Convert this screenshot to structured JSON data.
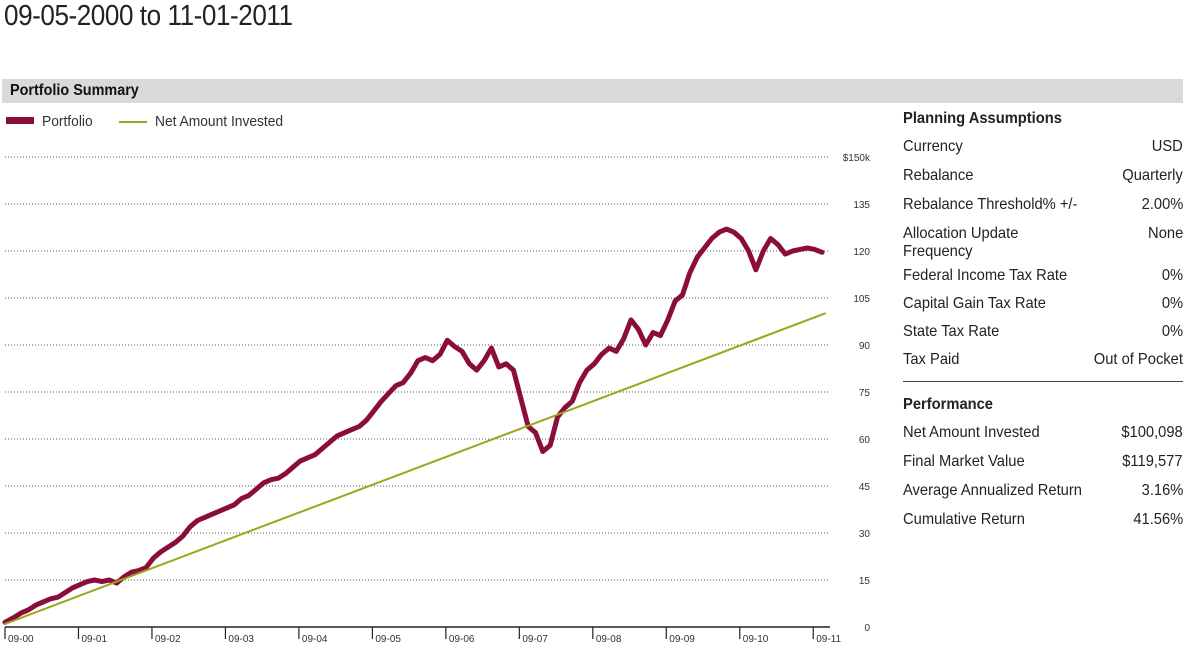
{
  "page": {
    "title": "09-05-2000 to 11-01-2011"
  },
  "section": {
    "title": "Portfolio Summary"
  },
  "colors": {
    "portfolio": "#8b0d3a",
    "net_invested": "#9aa71a",
    "grid": "#555555",
    "bar": "#d9d9d9"
  },
  "chart_data": {
    "type": "line",
    "title": "",
    "xlabel": "",
    "ylabel": "",
    "y_axis_side": "right",
    "y_tick_labels": [
      "0",
      "15",
      "30",
      "45",
      "60",
      "75",
      "90",
      "105",
      "120",
      "135",
      "$150k"
    ],
    "y_ticks": [
      0,
      15,
      30,
      45,
      60,
      75,
      90,
      105,
      120,
      135,
      150
    ],
    "ylim": [
      0,
      150
    ],
    "x_tick_labels": [
      "09-00",
      "09-01",
      "09-02",
      "09-03",
      "09-04",
      "09-05",
      "09-06",
      "09-07",
      "09-08",
      "09-09",
      "09-10",
      "09-11"
    ],
    "xlim": [
      2000.68,
      2011.84
    ],
    "grid": "horizontal dotted",
    "legend_position": "top-left",
    "series": [
      {
        "name": "Portfolio",
        "color": "#8b0d3a",
        "x": [
          2000.68,
          2000.8,
          2000.9,
          2001.0,
          2001.1,
          2001.2,
          2001.3,
          2001.4,
          2001.5,
          2001.6,
          2001.7,
          2001.8,
          2001.9,
          2002.0,
          2002.1,
          2002.2,
          2002.3,
          2002.4,
          2002.5,
          2002.6,
          2002.7,
          2002.8,
          2002.9,
          2003.0,
          2003.1,
          2003.2,
          2003.3,
          2003.4,
          2003.5,
          2003.6,
          2003.7,
          2003.8,
          2003.9,
          2004.0,
          2004.1,
          2004.2,
          2004.3,
          2004.4,
          2004.5,
          2004.6,
          2004.7,
          2004.8,
          2004.9,
          2005.0,
          2005.1,
          2005.2,
          2005.3,
          2005.4,
          2005.5,
          2005.6,
          2005.7,
          2005.8,
          2005.9,
          2006.0,
          2006.1,
          2006.2,
          2006.3,
          2006.4,
          2006.5,
          2006.6,
          2006.7,
          2006.8,
          2006.9,
          2007.0,
          2007.1,
          2007.2,
          2007.3,
          2007.4,
          2007.5,
          2007.6,
          2007.7,
          2007.8,
          2007.9,
          2008.0,
          2008.1,
          2008.2,
          2008.3,
          2008.4,
          2008.5,
          2008.6,
          2008.7,
          2008.8,
          2008.9,
          2009.0,
          2009.1,
          2009.2,
          2009.3,
          2009.4,
          2009.5,
          2009.6,
          2009.7,
          2009.8,
          2009.9,
          2010.0,
          2010.1,
          2010.2,
          2010.3,
          2010.4,
          2010.5,
          2010.6,
          2010.7,
          2010.8,
          2010.9,
          2011.0,
          2011.1,
          2011.2,
          2011.3,
          2011.4,
          2011.5,
          2011.6,
          2011.7,
          2011.8
        ],
        "values": [
          1.5,
          3.0,
          4.5,
          5.5,
          7.0,
          8.0,
          9.0,
          9.5,
          11.0,
          12.5,
          13.5,
          14.5,
          15.0,
          14.5,
          15.0,
          14.0,
          16.0,
          17.5,
          18.0,
          19.0,
          22.0,
          24.0,
          25.5,
          27.0,
          29.0,
          32.0,
          34.0,
          35.0,
          36.0,
          37.0,
          38.0,
          39.0,
          41.0,
          42.0,
          44.0,
          46.0,
          47.0,
          47.5,
          49.0,
          51.0,
          53.0,
          54.0,
          55.0,
          57.0,
          59.0,
          61.0,
          62.0,
          63.0,
          64.0,
          66.0,
          69.0,
          72.0,
          74.5,
          77.0,
          78.0,
          81.0,
          85.0,
          86.0,
          85.0,
          87.0,
          91.5,
          89.5,
          88.0,
          84.0,
          82.0,
          85.0,
          89.0,
          83.0,
          84.0,
          82.0,
          73.0,
          64.0,
          62.0,
          56.0,
          58.0,
          67.0,
          70.0,
          72.0,
          78.0,
          82.0,
          84.0,
          87.0,
          89.0,
          88.0,
          92.0,
          98.0,
          95.0,
          90.0,
          94.0,
          93.0,
          98.0,
          104.0,
          106.0,
          113.0,
          118.0,
          121.0,
          124.0,
          126.0,
          127.0,
          126.0,
          124.0,
          120.0,
          114.0,
          120.0,
          124.0,
          122.0,
          119.0,
          120.0,
          120.5,
          121.0,
          120.5,
          119.6
        ]
      },
      {
        "name": "Net Amount Invested",
        "color": "#9aa71a",
        "x": [
          2000.68,
          2011.84
        ],
        "values": [
          1.0,
          100.1
        ]
      }
    ]
  },
  "legend": {
    "portfolio": "Portfolio",
    "net_invested": "Net Amount Invested"
  },
  "planning": {
    "heading": "Planning Assumptions",
    "rows": [
      {
        "label": "Currency",
        "value": "USD"
      },
      {
        "label": "Rebalance",
        "value": "Quarterly"
      },
      {
        "label": "Rebalance Threshold% +/-",
        "value": "2.00%"
      },
      {
        "label": "Allocation Update Frequency",
        "value": "None"
      },
      {
        "label": "Federal Income Tax Rate",
        "value": "0%"
      },
      {
        "label": "Capital Gain Tax Rate",
        "value": "0%"
      },
      {
        "label": "State Tax Rate",
        "value": "0%"
      },
      {
        "label": "Tax Paid",
        "value": "Out of Pocket"
      }
    ]
  },
  "performance": {
    "heading": "Performance",
    "rows": [
      {
        "label": "Net Amount Invested",
        "value": "$100,098"
      },
      {
        "label": "Final Market Value",
        "value": "$119,577"
      },
      {
        "label": "Average Annualized Return",
        "value": "3.16%"
      },
      {
        "label": "Cumulative Return",
        "value": "41.56%"
      }
    ]
  }
}
